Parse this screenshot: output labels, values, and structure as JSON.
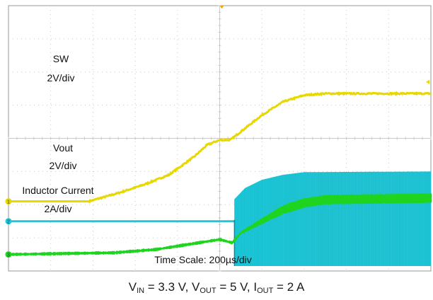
{
  "chart_data": {
    "type": "line",
    "title": "",
    "xlabel": "",
    "ylabel": "",
    "grid": true,
    "divisions": {
      "x": 10,
      "y": 8
    },
    "xlim": [
      0,
      10
    ],
    "time_scale_label": "Time Scale: 200µs/div",
    "colors": {
      "sw": "#e6d800",
      "vout": "#1ec8d8",
      "inductor": "#1fd41f",
      "grid": "#c8c8c8",
      "frame": "#9a9a9a",
      "trigger": "#f5a000"
    },
    "series": [
      {
        "key": "sw",
        "marker": "1",
        "label_line1": "SW",
        "label_line2": "2V/div",
        "baseline_div": 2.1,
        "points": [
          [
            0,
            2.1
          ],
          [
            1.9,
            2.1
          ],
          [
            2.6,
            2.35
          ],
          [
            3.2,
            2.6
          ],
          [
            3.8,
            2.9
          ],
          [
            4.4,
            3.45
          ],
          [
            4.7,
            3.8
          ],
          [
            5.0,
            3.95
          ],
          [
            5.25,
            3.95
          ],
          [
            5.5,
            4.2
          ],
          [
            6.0,
            4.7
          ],
          [
            6.5,
            5.1
          ],
          [
            7.0,
            5.3
          ],
          [
            7.5,
            5.35
          ],
          [
            10,
            5.35
          ]
        ],
        "noise_div": 0.04
      },
      {
        "key": "vout",
        "marker": "2",
        "label_line1": "Vout",
        "label_line2": "2V/div",
        "baseline_div": 1.5,
        "points": [
          [
            0,
            1.5
          ],
          [
            5.28,
            1.5
          ],
          [
            5.3,
            2.1
          ],
          [
            5.6,
            2.5
          ],
          [
            6.0,
            2.75
          ],
          [
            6.5,
            2.9
          ],
          [
            7.0,
            2.98
          ],
          [
            10,
            3.0
          ]
        ],
        "band_start": 5.35,
        "band_low_div": 0.15
      },
      {
        "key": "inductor",
        "marker": "3",
        "label_line1": "Inductor Current",
        "label_line2": "2A/div",
        "baseline_div": 0.5,
        "points": [
          [
            0,
            0.5
          ],
          [
            2.5,
            0.55
          ],
          [
            3.5,
            0.65
          ],
          [
            4.5,
            0.85
          ],
          [
            5.0,
            0.95
          ],
          [
            5.3,
            0.85
          ],
          [
            5.5,
            1.15
          ],
          [
            6.0,
            1.5
          ],
          [
            6.5,
            1.85
          ],
          [
            7.0,
            2.05
          ],
          [
            7.5,
            2.15
          ],
          [
            10,
            2.2
          ]
        ],
        "ripple_start": 5.4,
        "ripple_div": 0.22
      }
    ]
  },
  "caption": {
    "vin_sub": "IN",
    "vin_text": " = 3.3 V, V",
    "vout_sub": "OUT",
    "vout_text": " = 5 V, I",
    "iout_sub": "OUT",
    "iout_text": " = 2 A"
  }
}
